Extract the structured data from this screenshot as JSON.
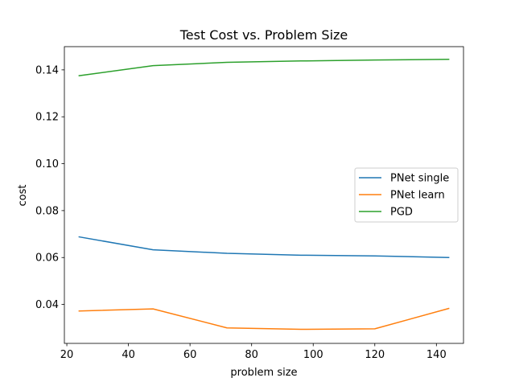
{
  "chart_data": {
    "type": "line",
    "title": "Test Cost vs. Problem Size",
    "xlabel": "problem size",
    "ylabel": "cost",
    "x": [
      24,
      48,
      72,
      96,
      120,
      144
    ],
    "xlim": [
      19.2,
      148.8
    ],
    "ylim": [
      0.0234,
      0.1499
    ],
    "xticks": [
      20,
      40,
      60,
      80,
      100,
      120,
      140
    ],
    "yticks": [
      0.04,
      0.06,
      0.08,
      0.1,
      0.12,
      0.14
    ],
    "xtick_labels": [
      "20",
      "40",
      "60",
      "80",
      "100",
      "120",
      "140"
    ],
    "ytick_labels": [
      "0.04",
      "0.06",
      "0.08",
      "0.10",
      "0.12",
      "0.14"
    ],
    "grid": false,
    "legend_position": "center-right",
    "series": [
      {
        "name": "PNet single",
        "color": "#1f77b4",
        "values": [
          0.0688,
          0.0633,
          0.0618,
          0.061,
          0.0607,
          0.06
        ]
      },
      {
        "name": "PNet learn",
        "color": "#ff7f0e",
        "values": [
          0.0372,
          0.0381,
          0.03,
          0.0294,
          0.0296,
          0.0383
        ]
      },
      {
        "name": "PGD",
        "color": "#2ca02c",
        "values": [
          0.1375,
          0.1418,
          0.1432,
          0.1438,
          0.1442,
          0.1445
        ]
      }
    ]
  }
}
